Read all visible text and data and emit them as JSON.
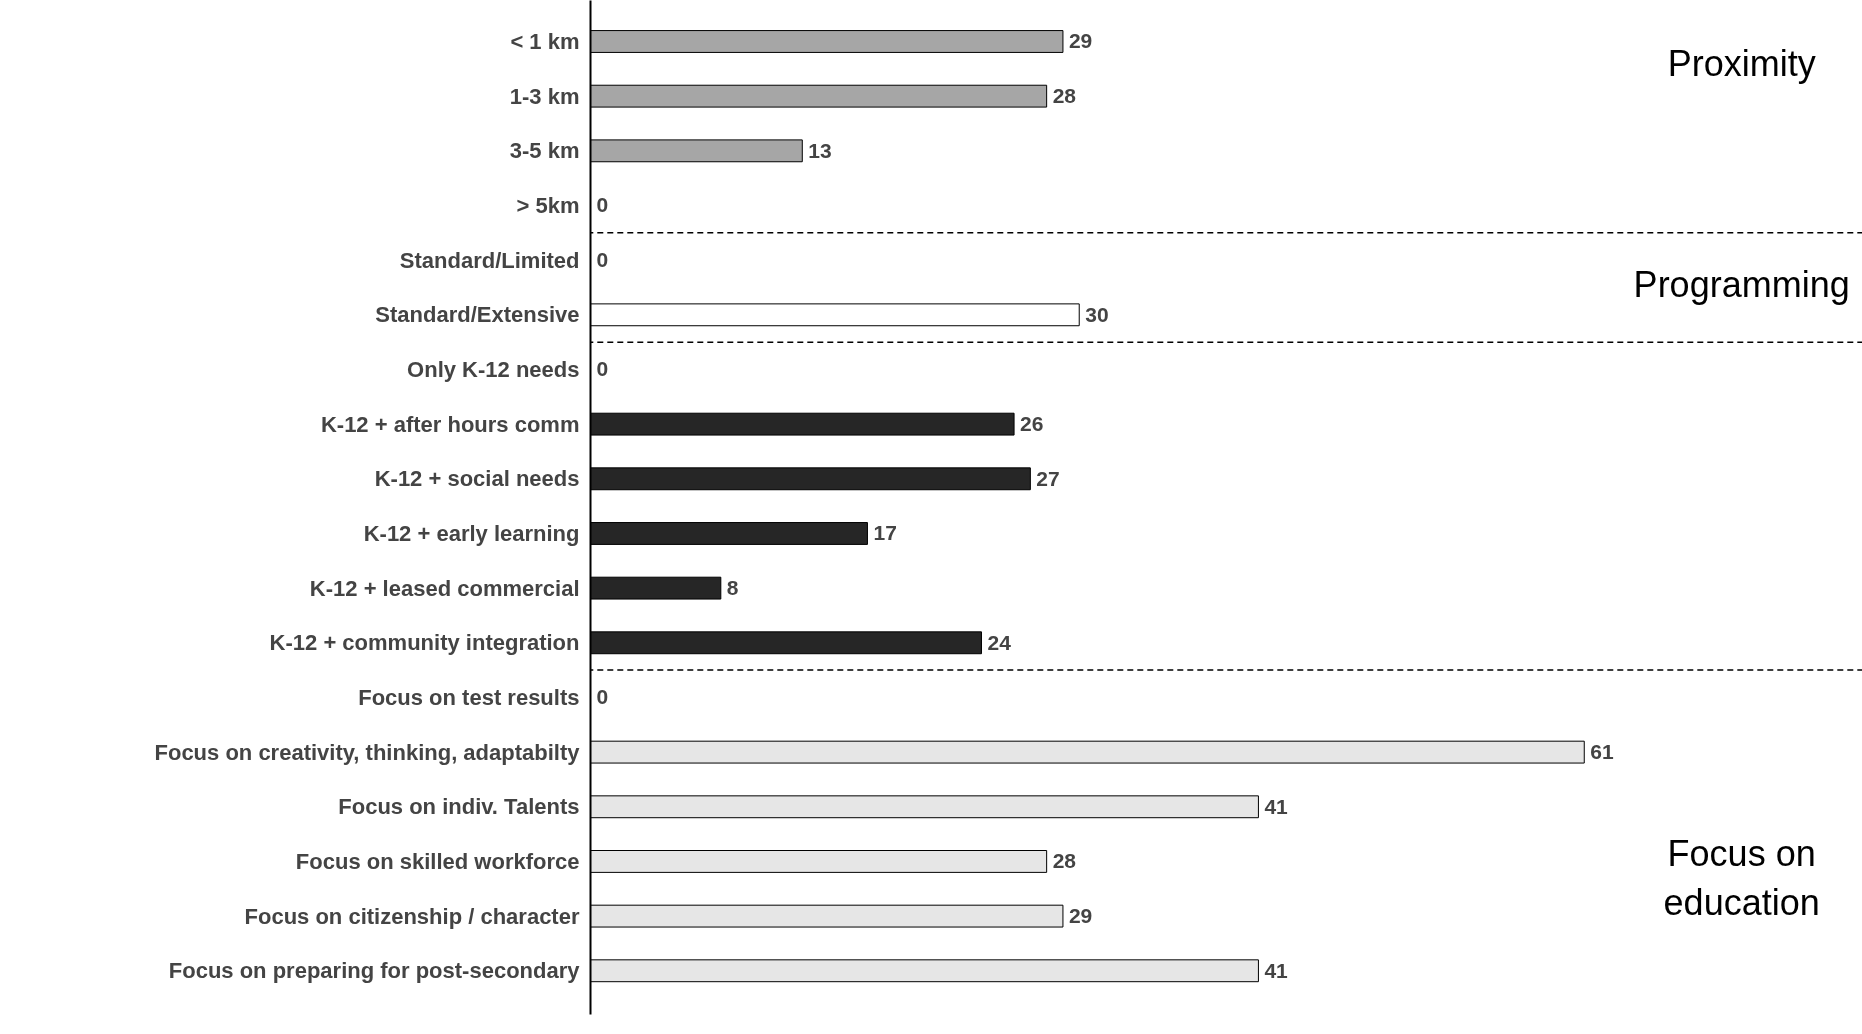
{
  "chart_data": {
    "type": "bar",
    "orientation": "horizontal",
    "data_labels": true,
    "categories": [
      "< 1 km",
      "1-3 km",
      "3-5 km",
      "> 5km",
      "Standard/Limited",
      "Standard/Extensive",
      "Only K-12 needs",
      "K-12 + after hours comm",
      "K-12 + social needs",
      "K-12 + early learning",
      "K-12 + leased commercial",
      "K-12 + community integration",
      "Focus on test results",
      "Focus on creativity, thinking, adaptabilty",
      "Focus on indiv. Talents",
      "Focus on skilled workforce",
      "Focus on citizenship / character",
      "Focus on preparing for post-secondary"
    ],
    "values": [
      29,
      28,
      13,
      0,
      0,
      30,
      0,
      26,
      27,
      17,
      8,
      24,
      0,
      61,
      41,
      28,
      29,
      41
    ],
    "colors": [
      "#a6a6a6",
      "#a6a6a6",
      "#a6a6a6",
      "#a6a6a6",
      "#ffffff",
      "#ffffff",
      "#262626",
      "#262626",
      "#262626",
      "#262626",
      "#262626",
      "#262626",
      "#e6e6e6",
      "#e6e6e6",
      "#e6e6e6",
      "#e6e6e6",
      "#e6e6e6",
      "#e6e6e6"
    ],
    "annotations": [
      "Proximity",
      "Programming",
      "Focus on education"
    ]
  }
}
